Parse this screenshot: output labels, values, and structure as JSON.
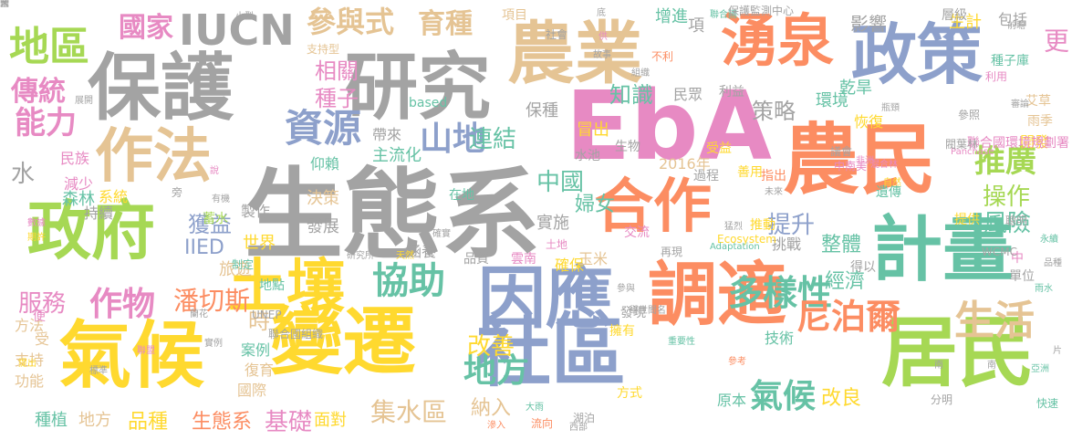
{
  "palette": {
    "gray": "#a3a3a3",
    "green": "#a6d854",
    "blue": "#8da0cb",
    "orange": "#fc8d62",
    "teal": "#66c2a5",
    "pink": "#e78ac3",
    "yellow": "#ffd92f",
    "tan": "#e5c494"
  },
  "words": [
    {
      "text": "生態系",
      "color": "gray"
    },
    {
      "text": "EbA",
      "color": "pink"
    },
    {
      "text": "保護",
      "color": "gray"
    },
    {
      "text": "農業",
      "color": "tan"
    },
    {
      "text": "研究",
      "color": "gray"
    },
    {
      "text": "政策",
      "color": "blue"
    },
    {
      "text": "湧泉",
      "color": "orange"
    },
    {
      "text": "農民",
      "color": "orange"
    },
    {
      "text": "合作",
      "color": "orange"
    },
    {
      "text": "計畫",
      "color": "teal"
    },
    {
      "text": "調適",
      "color": "orange"
    },
    {
      "text": "因應",
      "color": "blue"
    },
    {
      "text": "社區",
      "color": "blue"
    },
    {
      "text": "氣候",
      "color": "yellow"
    },
    {
      "text": "變遷",
      "color": "yellow"
    },
    {
      "text": "居民",
      "color": "green"
    },
    {
      "text": "土壤",
      "color": "yellow"
    },
    {
      "text": "政府",
      "color": "green"
    },
    {
      "text": "作法",
      "color": "tan"
    },
    {
      "text": "地區",
      "color": "green"
    },
    {
      "text": "IUCN",
      "color": "gray"
    },
    {
      "text": "國家",
      "color": "pink"
    },
    {
      "text": "參與式",
      "color": "tan"
    },
    {
      "text": "育種",
      "color": "tan"
    },
    {
      "text": "項目",
      "color": "tan"
    },
    {
      "text": "傳統",
      "color": "pink"
    },
    {
      "text": "能力",
      "color": "pink"
    },
    {
      "text": "資源",
      "color": "blue"
    },
    {
      "text": "山地",
      "color": "blue"
    },
    {
      "text": "連結",
      "color": "teal"
    },
    {
      "text": "策略",
      "color": "gray"
    },
    {
      "text": "知識",
      "color": "teal"
    },
    {
      "text": "種子",
      "color": "pink"
    },
    {
      "text": "相關",
      "color": "pink"
    },
    {
      "text": "多樣性",
      "color": "teal"
    },
    {
      "text": "尼泊爾",
      "color": "orange"
    },
    {
      "text": "生活",
      "color": "tan"
    },
    {
      "text": "推廣",
      "color": "green"
    },
    {
      "text": "操作",
      "color": "green"
    },
    {
      "text": "風險",
      "color": "teal"
    },
    {
      "text": "協助",
      "color": "teal"
    },
    {
      "text": "作物",
      "color": "pink"
    },
    {
      "text": "服務",
      "color": "pink"
    },
    {
      "text": "地方",
      "color": "teal"
    },
    {
      "text": "改善",
      "color": "yellow"
    },
    {
      "text": "水",
      "color": "gray"
    },
    {
      "text": "集水區",
      "color": "tan"
    },
    {
      "text": "納入",
      "color": "tan"
    },
    {
      "text": "氣候",
      "color": "teal"
    },
    {
      "text": "改良",
      "color": "yellow"
    },
    {
      "text": "經濟",
      "color": "teal"
    },
    {
      "text": "提升",
      "color": "blue"
    },
    {
      "text": "獲益",
      "color": "blue"
    },
    {
      "text": "潘切斯",
      "color": "orange"
    },
    {
      "text": "IIED",
      "color": "blue"
    },
    {
      "text": "中國",
      "color": "teal"
    },
    {
      "text": "婦女",
      "color": "teal"
    },
    {
      "text": "實施",
      "color": "gray"
    },
    {
      "text": "確保",
      "color": "yellow"
    },
    {
      "text": "玉米",
      "color": "tan"
    },
    {
      "text": "旅遊",
      "color": "tan"
    },
    {
      "text": "蓄水",
      "color": "green"
    },
    {
      "text": "發展",
      "color": "gray"
    },
    {
      "text": "決策",
      "color": "tan"
    },
    {
      "text": "時",
      "color": "tan"
    },
    {
      "text": "案例",
      "color": "teal"
    },
    {
      "text": "復育",
      "color": "tan"
    },
    {
      "text": "國際",
      "color": "tan"
    },
    {
      "text": "基礎",
      "color": "pink"
    },
    {
      "text": "生態系",
      "color": "orange"
    },
    {
      "text": "品種",
      "color": "yellow"
    },
    {
      "text": "種植",
      "color": "teal"
    },
    {
      "text": "地方",
      "color": "tan"
    },
    {
      "text": "面對",
      "color": "yellow"
    },
    {
      "text": "功能",
      "color": "tan"
    },
    {
      "text": "支持",
      "color": "tan"
    },
    {
      "text": "減少",
      "color": "pink"
    },
    {
      "text": "森林",
      "color": "teal"
    },
    {
      "text": "民族",
      "color": "pink"
    },
    {
      "text": "系統",
      "color": "yellow"
    },
    {
      "text": "持續",
      "color": "gray"
    },
    {
      "text": "技術",
      "color": "teal"
    },
    {
      "text": "原本",
      "color": "teal"
    },
    {
      "text": "整體",
      "color": "teal"
    },
    {
      "text": "挑戰",
      "color": "gray"
    },
    {
      "text": "影響",
      "color": "gray"
    },
    {
      "text": "乾旱",
      "color": "teal"
    },
    {
      "text": "環境",
      "color": "teal"
    },
    {
      "text": "恢復",
      "color": "yellow"
    },
    {
      "text": "生計",
      "color": "yellow"
    },
    {
      "text": "層級",
      "color": "gray"
    },
    {
      "text": "包括",
      "color": "gray"
    },
    {
      "text": "更",
      "color": "pink"
    },
    {
      "text": "增進",
      "color": "teal"
    },
    {
      "text": "民眾",
      "color": "gray"
    },
    {
      "text": "利益",
      "color": "gray"
    },
    {
      "text": "主流化",
      "color": "teal"
    },
    {
      "text": "帶來",
      "color": "gray"
    },
    {
      "text": "仰賴",
      "color": "teal"
    },
    {
      "text": "製作",
      "color": "gray"
    },
    {
      "text": "涵養",
      "color": "gray"
    },
    {
      "text": "品質",
      "color": "gray"
    },
    {
      "text": "雲南",
      "color": "pink"
    },
    {
      "text": "土地",
      "color": "pink"
    },
    {
      "text": "世界",
      "color": "yellow"
    },
    {
      "text": "地點",
      "color": "teal"
    },
    {
      "text": "交流",
      "color": "pink"
    },
    {
      "text": "推動",
      "color": "yellow"
    },
    {
      "text": "提供",
      "color": "yellow"
    },
    {
      "text": "遺傳",
      "color": "teal"
    },
    {
      "text": "過程",
      "color": "gray"
    },
    {
      "text": "2016年",
      "color": "tan"
    },
    {
      "text": "善用",
      "color": "yellow"
    },
    {
      "text": "受益",
      "color": "yellow"
    },
    {
      "text": "指出",
      "color": "orange"
    },
    {
      "text": "冒出",
      "color": "yellow"
    },
    {
      "text": "水池",
      "color": "gray"
    },
    {
      "text": "生物",
      "color": "gray"
    },
    {
      "text": "保種",
      "color": "gray"
    },
    {
      "text": "項",
      "color": "gray"
    },
    {
      "text": "中",
      "color": "pink"
    },
    {
      "text": "單位",
      "color": "gray"
    },
    {
      "text": "得以",
      "color": "gray"
    },
    {
      "text": "發現",
      "color": "gray"
    },
    {
      "text": "擁有",
      "color": "yellow"
    },
    {
      "text": "方式",
      "color": "yellow"
    },
    {
      "text": "方法",
      "color": "tan"
    },
    {
      "text": "受",
      "color": "tan"
    },
    {
      "text": "便",
      "color": "pink"
    },
    {
      "text": "制定",
      "color": "teal"
    },
    {
      "text": "支持型",
      "color": "tan"
    },
    {
      "text": "社會",
      "color": "gray"
    },
    {
      "text": "艾草",
      "color": "tan"
    },
    {
      "text": "雨季",
      "color": "tan"
    },
    {
      "text": "開發",
      "color": "yellow"
    },
    {
      "text": "種子庫",
      "color": "teal"
    },
    {
      "text": "利用",
      "color": "pink"
    },
    {
      "text": "參照",
      "color": "gray"
    },
    {
      "text": "聯合國環境規劃署",
      "color": "pink"
    },
    {
      "text": "聯合國",
      "color": "teal"
    },
    {
      "text": "不利",
      "color": "orange"
    },
    {
      "text": "保護監測中心",
      "color": "gray"
    },
    {
      "text": "Panchase",
      "color": "pink"
    },
    {
      "text": "Ecosystem",
      "color": "yellow"
    },
    {
      "text": "Adaptation",
      "color": "teal"
    },
    {
      "text": "WCMC",
      "color": "gray"
    },
    {
      "text": "UNEP",
      "color": "gray"
    },
    {
      "text": "based",
      "color": "teal"
    },
    {
      "text": "在地",
      "color": "teal"
    },
    {
      "text": "說",
      "color": "pink"
    },
    {
      "text": "旁",
      "color": "gray"
    },
    {
      "text": "供",
      "color": "pink"
    },
    {
      "text": "故事",
      "color": "gray"
    },
    {
      "text": "組織",
      "color": "gray"
    },
    {
      "text": "小型",
      "color": "gray"
    },
    {
      "text": "展開",
      "color": "gray"
    },
    {
      "text": "天然",
      "color": "yellow"
    },
    {
      "text": "研究所",
      "color": "gray"
    },
    {
      "text": "再現",
      "color": "gray"
    },
    {
      "text": "重要性",
      "color": "teal"
    },
    {
      "text": "分明",
      "color": "gray"
    },
    {
      "text": "聰明",
      "color": "gray"
    },
    {
      "text": "永續",
      "color": "teal"
    },
    {
      "text": "品種",
      "color": "gray"
    },
    {
      "text": "雨水",
      "color": "teal"
    },
    {
      "text": "快速",
      "color": "teal"
    },
    {
      "text": "亞洲",
      "color": "teal"
    },
    {
      "text": "片",
      "color": "gray"
    },
    {
      "text": "南",
      "color": "gray"
    },
    {
      "text": "南",
      "color": "gray"
    },
    {
      "text": "閥葉林",
      "color": "gray"
    },
    {
      "text": "中南美",
      "color": "pink"
    },
    {
      "text": "混合林",
      "color": "pink"
    },
    {
      "text": "自然",
      "color": "yellow"
    },
    {
      "text": "非洲",
      "color": "pink"
    },
    {
      "text": "數據",
      "color": "pink"
    },
    {
      "text": "期許",
      "color": "yellow"
    },
    {
      "text": "提出",
      "color": "yellow"
    },
    {
      "text": "聯盟",
      "color": "pink"
    },
    {
      "text": "標準",
      "color": "gray"
    },
    {
      "text": "實例",
      "color": "gray"
    },
    {
      "text": "蘭花",
      "color": "gray"
    },
    {
      "text": "舉世聞名",
      "color": "gray"
    },
    {
      "text": "湖泊",
      "color": "gray"
    },
    {
      "text": "大雨",
      "color": "teal"
    },
    {
      "text": "流向",
      "color": "orange"
    },
    {
      "text": "參與",
      "color": "gray"
    },
    {
      "text": "有機",
      "color": "gray"
    },
    {
      "text": "聯合國組織",
      "color": "gray"
    },
    {
      "text": "確實",
      "color": "gray"
    },
    {
      "text": "滲入",
      "color": "orange"
    },
    {
      "text": "西部",
      "color": "gray"
    },
    {
      "text": "猛烈",
      "color": "gray"
    },
    {
      "text": "瓶頸",
      "color": "gray"
    },
    {
      "text": "參考",
      "color": "orange"
    },
    {
      "text": "審論",
      "color": "gray"
    },
    {
      "text": "前瞻",
      "color": "gray"
    },
    {
      "text": "議會",
      "color": "gray"
    },
    {
      "text": "未來",
      "color": "gray"
    },
    {
      "text": "底",
      "color": "gray"
    },
    {
      "text": "國",
      "color": "gray"
    },
    {
      "text": "合",
      "color": "gray"
    },
    {
      "text": "宋",
      "color": "gray"
    }
  ]
}
